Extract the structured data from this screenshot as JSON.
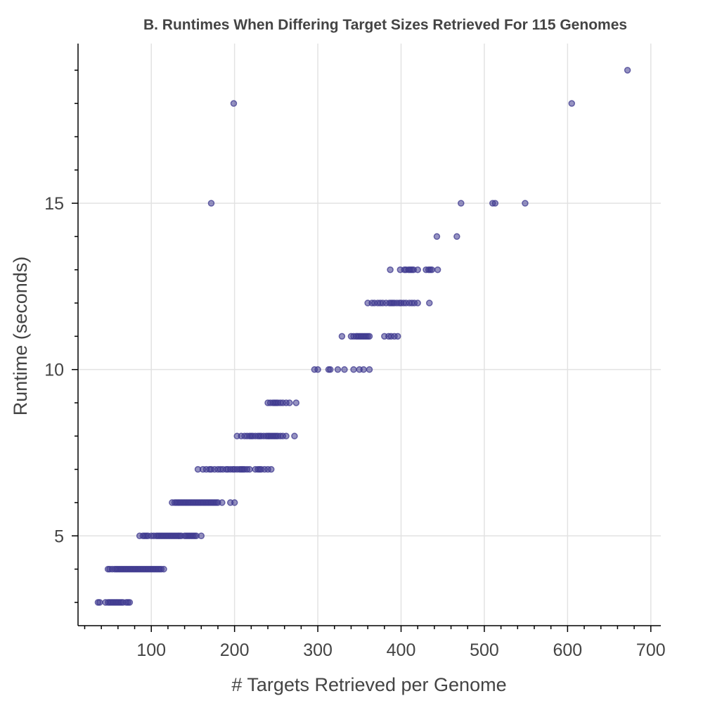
{
  "chart_data": {
    "type": "scatter",
    "title": "B. Runtimes When Differing Target Sizes Retrieved For 115 Genomes",
    "xlabel": "# Targets Retrieved per Genome",
    "ylabel": "Runtime (seconds)",
    "xlim": [
      12,
      712
    ],
    "ylim": [
      2.3,
      19.8
    ],
    "x_ticks": [
      100,
      200,
      300,
      400,
      500,
      600,
      700
    ],
    "x_minor_step": 20,
    "y_ticks": [
      5,
      10,
      15
    ],
    "y_minor_step": 1,
    "grid": true,
    "marker_color": "#3f3a8f",
    "marker_opacity": 0.55,
    "rows": [
      {
        "y": 3,
        "x": [
          36,
          38,
          45,
          48,
          50,
          52,
          54,
          56,
          58,
          60,
          62,
          64,
          66,
          70,
          72,
          74
        ]
      },
      {
        "y": 4,
        "x": [
          48,
          50,
          53,
          56,
          58,
          60,
          62,
          64,
          66,
          68,
          70,
          72,
          74,
          76,
          78,
          80,
          82,
          84,
          86,
          88,
          90,
          92,
          94,
          96,
          98,
          100,
          102,
          104,
          106,
          108,
          110,
          112,
          115
        ]
      },
      {
        "y": 5,
        "x": [
          86,
          90,
          92,
          94,
          96,
          100,
          103,
          106,
          108,
          110,
          112,
          114,
          116,
          118,
          120,
          122,
          124,
          126,
          128,
          130,
          132,
          134,
          136,
          140,
          142,
          144,
          146,
          148,
          150,
          152,
          154,
          160
        ]
      },
      {
        "y": 6,
        "x": [
          125,
          128,
          130,
          132,
          134,
          136,
          138,
          140,
          142,
          144,
          146,
          148,
          150,
          152,
          154,
          156,
          158,
          160,
          162,
          164,
          166,
          168,
          170,
          172,
          174,
          176,
          178,
          180,
          185,
          195,
          200
        ]
      },
      {
        "y": 7,
        "x": [
          156,
          162,
          166,
          170,
          172,
          176,
          180,
          183,
          186,
          190,
          192,
          195,
          198,
          200,
          203,
          206,
          208,
          210,
          212,
          215,
          218,
          225,
          228,
          230,
          232,
          236,
          240,
          244
        ]
      },
      {
        "y": 8,
        "x": [
          203,
          208,
          212,
          215,
          218,
          220,
          222,
          225,
          228,
          230,
          232,
          235,
          238,
          240,
          242,
          244,
          246,
          248,
          250,
          252,
          255,
          258,
          262,
          272
        ]
      },
      {
        "y": 9,
        "x": [
          240,
          243,
          246,
          248,
          250,
          252,
          255,
          258,
          262,
          266,
          274
        ]
      },
      {
        "y": 10,
        "x": [
          296,
          300,
          313,
          315,
          324,
          332,
          343,
          350,
          355,
          362
        ]
      },
      {
        "y": 11,
        "x": [
          329,
          340,
          343,
          346,
          348,
          350,
          352,
          354,
          356,
          358,
          360,
          362,
          380,
          385,
          388,
          392,
          396
        ]
      },
      {
        "y": 12,
        "x": [
          360,
          365,
          368,
          372,
          375,
          378,
          382,
          386,
          388,
          390,
          392,
          395,
          398,
          400,
          403,
          406,
          410,
          413,
          416,
          420,
          434
        ]
      },
      {
        "y": 13,
        "x": [
          387,
          399,
          404,
          406,
          409,
          411,
          413,
          415,
          420,
          430,
          433,
          435,
          437,
          444
        ]
      },
      {
        "y": 14,
        "x": [
          443,
          467
        ]
      },
      {
        "y": 15,
        "x": [
          172,
          472,
          510,
          513,
          549
        ]
      },
      {
        "y": 18,
        "x": [
          199,
          605
        ]
      },
      {
        "y": 19,
        "x": [
          672
        ]
      }
    ]
  }
}
